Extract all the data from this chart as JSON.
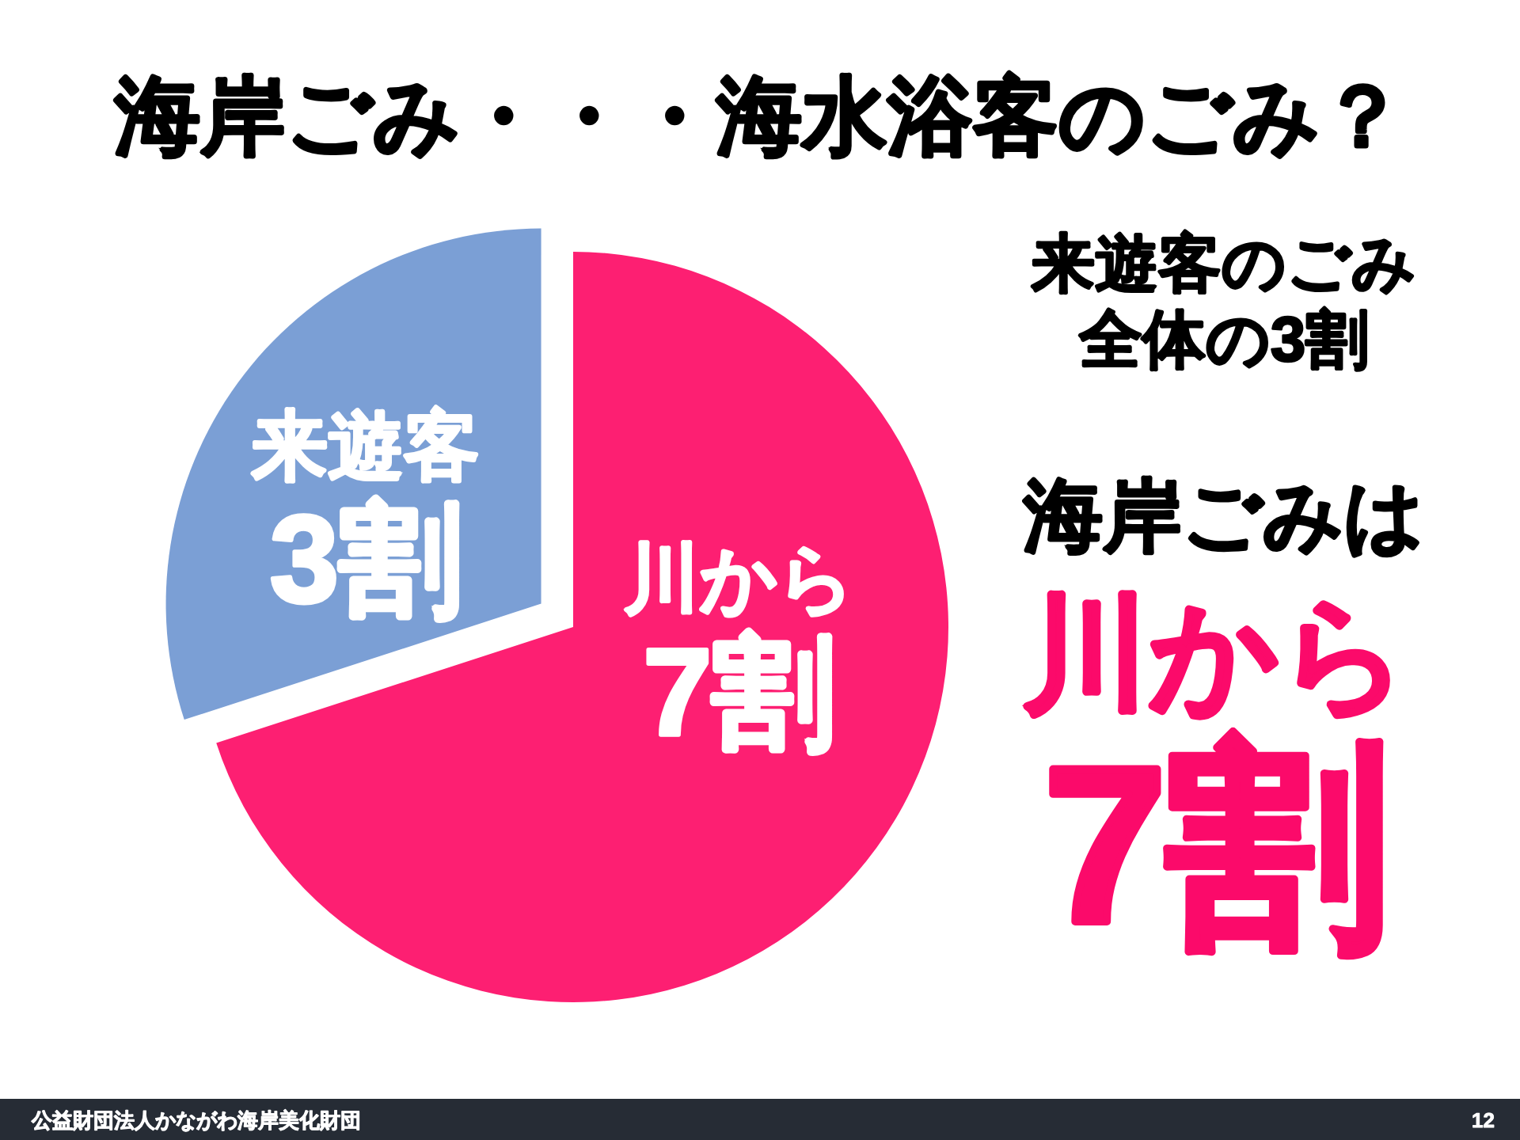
{
  "chart_data": {
    "type": "pie",
    "title": "海岸ごみ・・・海水浴客のごみ？",
    "categories": [
      "川から",
      "来遊客"
    ],
    "values": [
      7,
      3
    ],
    "value_labels": [
      "7割",
      "3割"
    ],
    "colors": [
      "#fd1f72",
      "#7b9fd5"
    ],
    "annotations": [
      "来遊客のごみ",
      "全体の3割",
      "海岸ごみは",
      "川から",
      "7割",
      "公益財団法人かながわ海岸美化財団",
      "12"
    ]
  }
}
